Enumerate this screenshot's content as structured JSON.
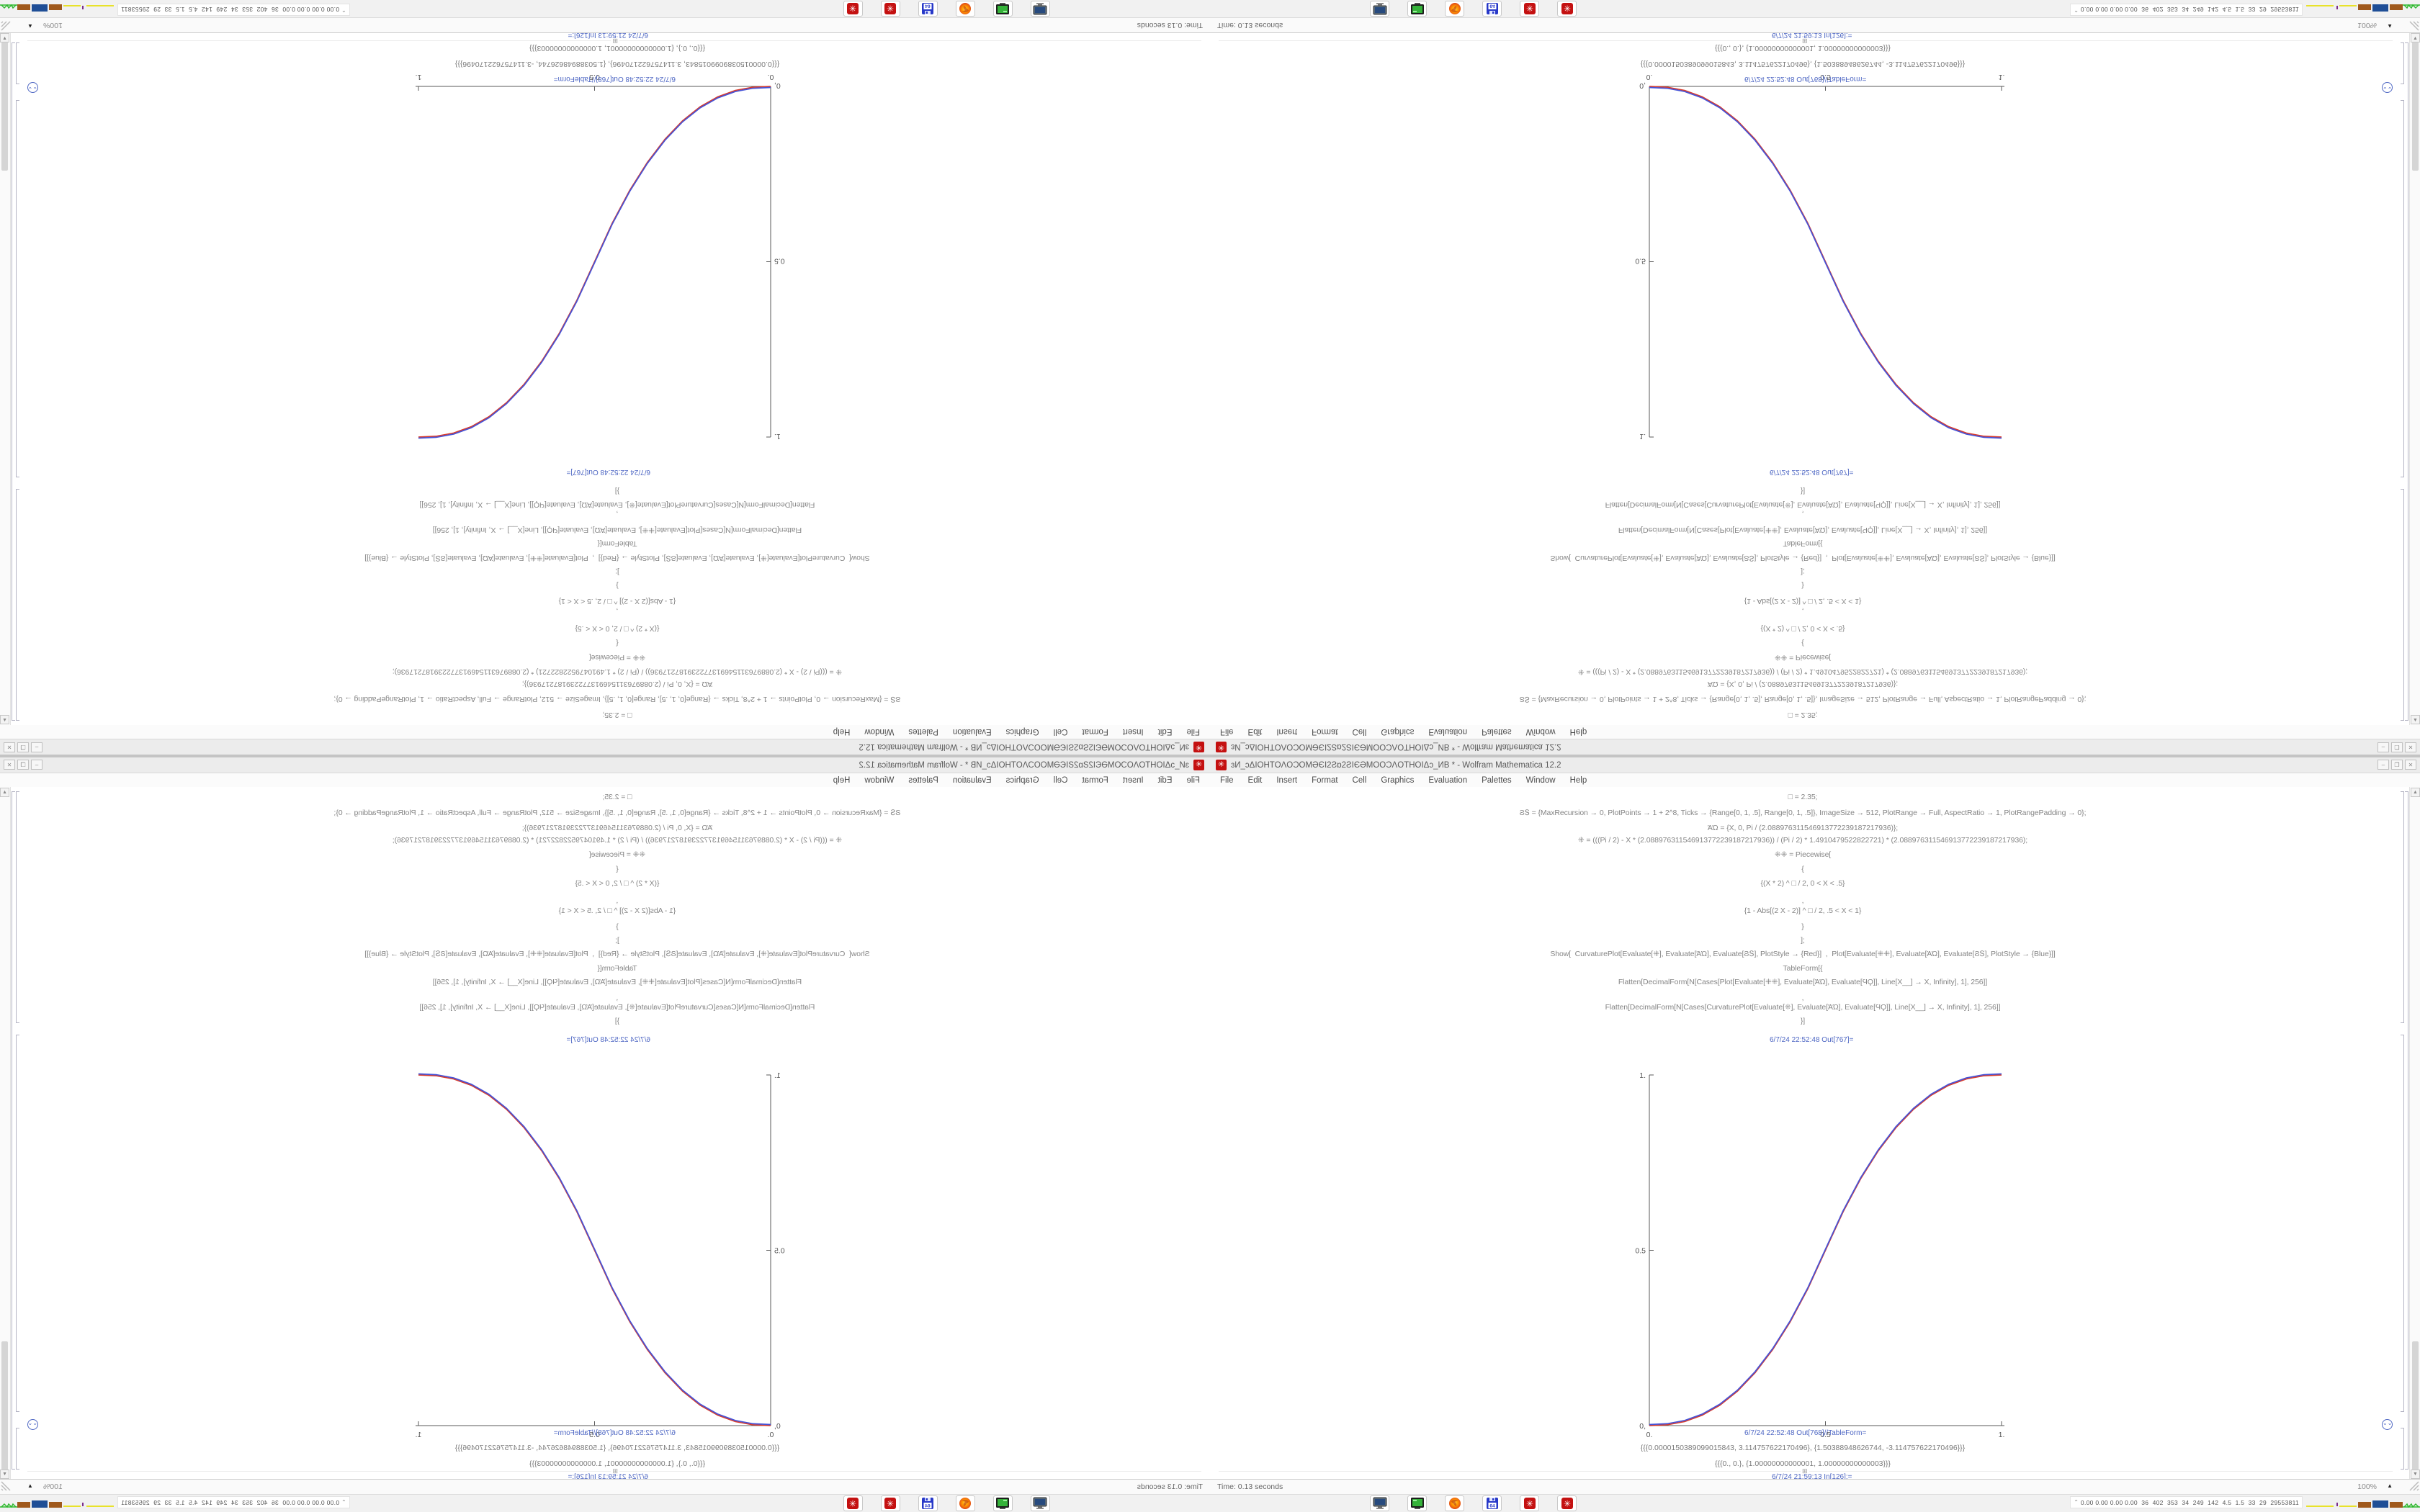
{
  "window": {
    "title": "ɜИ_ɔΔIOHTOΛOƆOMӘЄI2Ƨɒ2ƧIЄӘMOOƆΛOTHOIΔɔ_ИB * - Wolfram Mathematica 12.2",
    "app_icon": "mathematica-gear",
    "controls": {
      "minimize": "–",
      "maximize": "❐",
      "close": "✕"
    },
    "menu": [
      "File",
      "Edit",
      "Insert",
      "Format",
      "Cell",
      "Graphics",
      "Evaluation",
      "Palettes",
      "Window",
      "Help"
    ],
    "cells": {
      "in_lines": [
        "□ = 2.35;",
        "ϨՏ = {MaxRecursion → 0, PlotPoints → 1 + 2^8, Ticks → {Range[0, 1, .5], Range[0, 1, .5]}, ImageSize → 512, PlotRange → Full, AspectRatio → 1, PlotRangePadding → 0};",
        "ΆΏ = {X, 0, Pi / (2.088976311546913772239187217936)};",
        "⁜ = (((Pi / 2) - X * (2.088976311546913772239187217936)) / (Pi / 2) * 1.4910479522822721) * (2.088976311546913772239187217936);",
        "⁜⁜ = Piecewise[",
        "{",
        "{(X * 2) ^ □ / 2, 0 < X < .5}",
        ",",
        "{1 - Abs[(2 X - 2)] ^ □ / 2, .5 < X < 1}",
        "}",
        "];",
        "Show[  CurvaturePlot[Evaluate[⁜], Evaluate[ΆΏ], Evaluate[ϨՏ], PlotStyle → {Red}]  ,  Plot[Evaluate[⁜⁜], Evaluate[ΆΏ], Evaluate[ϨՏ], PlotStyle → {Blue}]]",
        "TableForm[{",
        "Flatten[DecimalForm[N[Cases[Plot[Evaluate[⁜⁜], Evaluate[ΆΏ], Evaluate[ϤϘ]], Line[X__] → X, Infinity], 1], 256]]",
        ",",
        "Flatten[DecimalForm[N[Cases[CurvaturePlot[Evaluate[⁜], Evaluate[ΆΏ], Evaluate[ϤϘ]], Line[X__] → X, Infinity], 1], 256]]",
        "}]"
      ],
      "out_plot_label": "6/7/24 22:52:48 Out[767]=",
      "out_table_label": "6/7/24 22:52:48 Out[768]//TableForm=",
      "table_rows": [
        "{{{0.0000150389099015843, 3.114757622170496}, {1.50388948626744, -3.114757622170496}}}",
        "{{{0., 0.}, {1.00000000000001, 1.00000000000003}}}"
      ],
      "insert_marker": "⊞",
      "next_in_label": "6/7/24 21:59:13 In[126]:=",
      "jump_icon": "⌄⌄"
    },
    "status": {
      "left": "Time: 0.13 seconds",
      "zoom": "100%",
      "zoom_arrow": "▲"
    },
    "scrollbar": {
      "up": "▲",
      "down": "▼"
    }
  },
  "taskbar": {
    "icons": [
      {
        "name": "monitor"
      },
      {
        "name": "terminal-green"
      },
      {
        "name": "firefox"
      },
      {
        "name": "floppy-64",
        "label": "64"
      },
      {
        "name": "gear-red-1",
        "glyph": "✳"
      },
      {
        "name": "gear-red-2",
        "glyph": "✳"
      }
    ],
    "sysmon": {
      "caret": "⌃",
      "values": "0.00 0.00 0.00 0.00  36  402  353  34  249  142  4.5  1.5  33  29  29553811",
      "block_colors": [
        "#e8e22a",
        "#7b2d8b",
        "#a0591c",
        "#1f4e96",
        "#a0591c",
        "#2db82d"
      ]
    }
  },
  "chart_data": {
    "type": "line",
    "title": "",
    "xlabel": "",
    "ylabel": "",
    "xlim": [
      0,
      1
    ],
    "ylim": [
      0,
      1
    ],
    "xticks": [
      0,
      0.5,
      1
    ],
    "yticks": [
      0,
      0.5,
      1
    ],
    "tick_labels": {
      "x": [
        "0.",
        "0.5",
        "1."
      ],
      "y": [
        "0,",
        "0.5",
        "1."
      ]
    },
    "grid": false,
    "legend": null,
    "x": [
      0,
      0.05,
      0.1,
      0.15,
      0.2,
      0.25,
      0.3,
      0.35,
      0.4,
      0.45,
      0.5,
      0.55,
      0.6,
      0.65,
      0.7,
      0.75,
      0.8,
      0.85,
      0.9,
      0.95,
      1
    ],
    "series": [
      {
        "name": "CurvaturePlot (Red)",
        "color": "#d83b2c",
        "values": [
          0,
          0.0022,
          0.0114,
          0.0295,
          0.058,
          0.098,
          0.1505,
          0.2163,
          0.296,
          0.3903,
          0.5,
          0.6097,
          0.704,
          0.7837,
          0.8495,
          0.902,
          0.942,
          0.9705,
          0.9886,
          0.9978,
          1
        ]
      },
      {
        "name": "Plot (Blue)",
        "color": "#4653d7",
        "values": [
          0,
          0.0022,
          0.0114,
          0.0295,
          0.058,
          0.098,
          0.1505,
          0.2163,
          0.296,
          0.3903,
          0.5,
          0.6097,
          0.704,
          0.7837,
          0.8495,
          0.902,
          0.942,
          0.9705,
          0.9886,
          0.9978,
          1
        ]
      }
    ]
  }
}
